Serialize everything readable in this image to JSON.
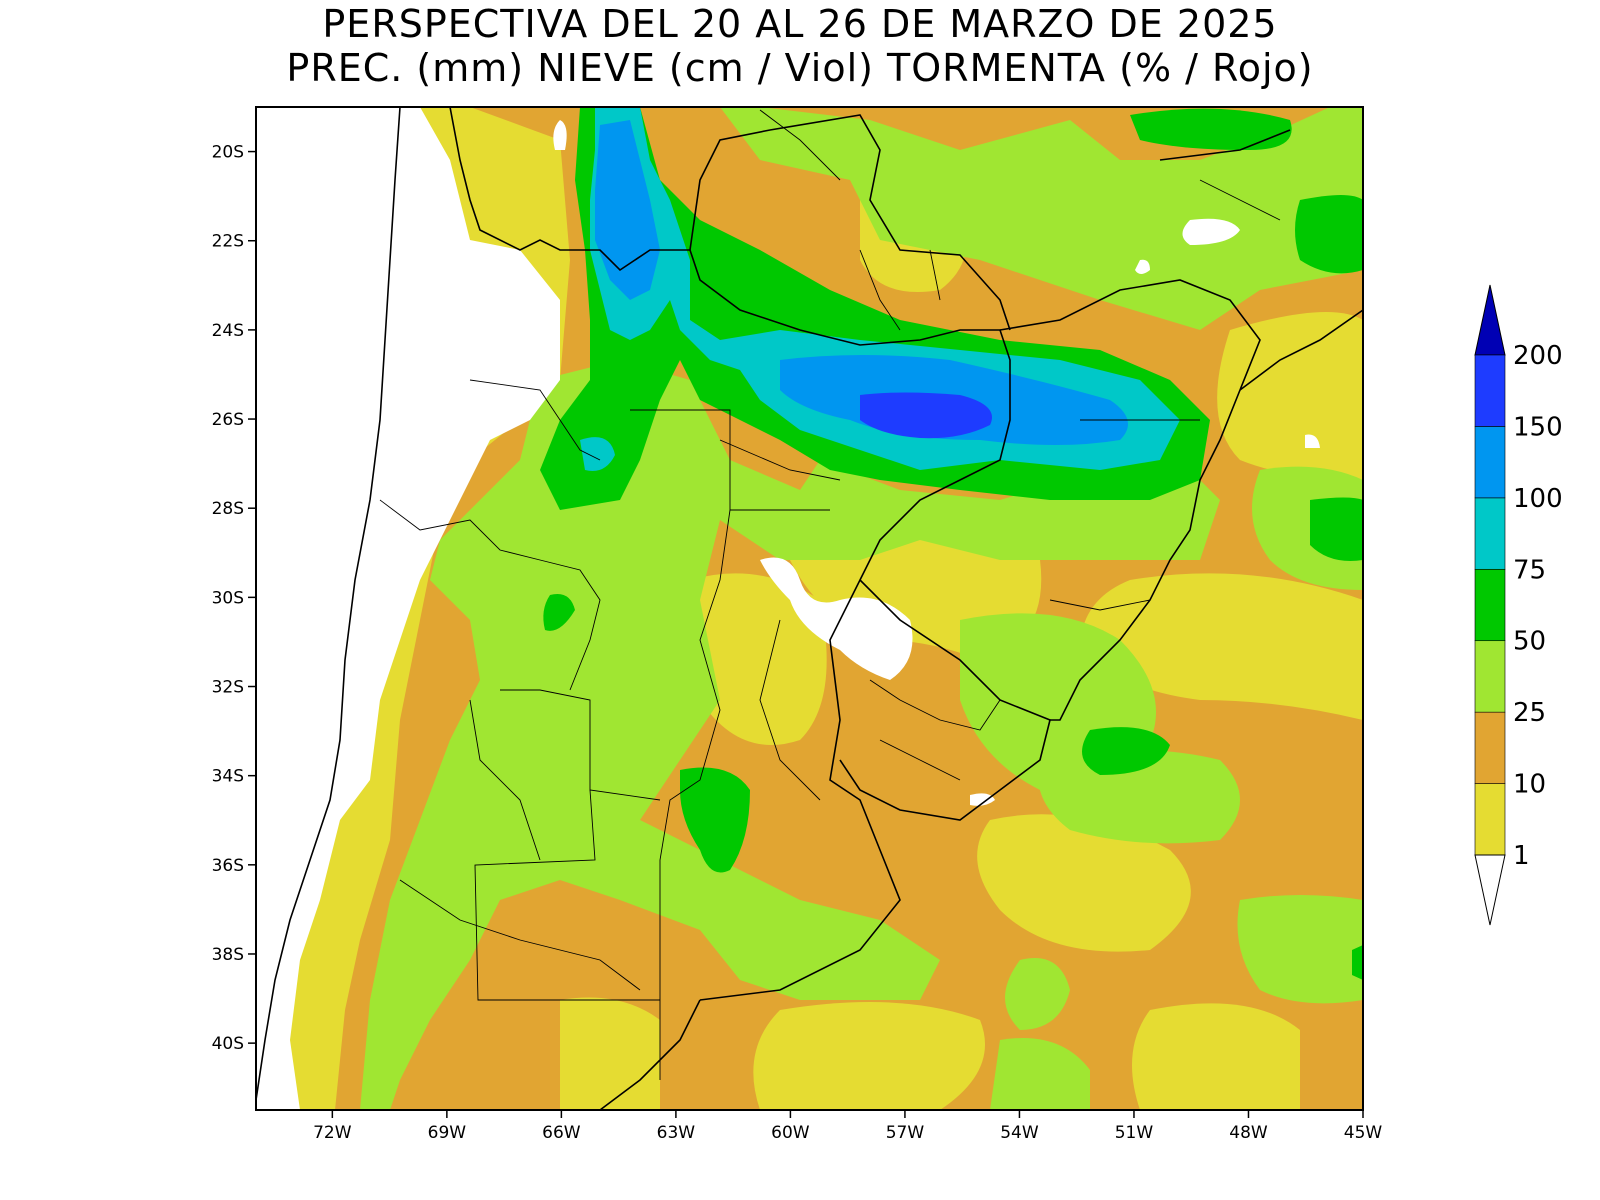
{
  "title": {
    "line1": "PERSPECTIVA DEL 20 AL 26 DE MARZO DE 2025",
    "line2": "PREC. (mm) NIEVE (cm / Viol) TORMENTA (% / Rojo)"
  },
  "map": {
    "lat_labels": [
      "20S",
      "22S",
      "24S",
      "26S",
      "28S",
      "30S",
      "32S",
      "34S",
      "36S",
      "38S",
      "40S"
    ],
    "lon_labels": [
      "72W",
      "69W",
      "66W",
      "63W",
      "60W",
      "57W",
      "54W",
      "51W",
      "48W",
      "45W"
    ],
    "extent": {
      "lon_min": -74,
      "lon_max": -45,
      "lat_min": -41.5,
      "lat_max": -19
    }
  },
  "colorbar": {
    "labels": [
      "1",
      "10",
      "25",
      "50",
      "75",
      "100",
      "150",
      "200"
    ],
    "colors": {
      "below_1": "#ffffff",
      "1_10": "#e5dc32",
      "10_25": "#e1a532",
      "25_50": "#a0e632",
      "50_75": "#00c800",
      "75_100": "#00c8c8",
      "100_150": "#0096f0",
      "150_200": "#1e3cff",
      "above_200": "#0000b4"
    }
  }
}
